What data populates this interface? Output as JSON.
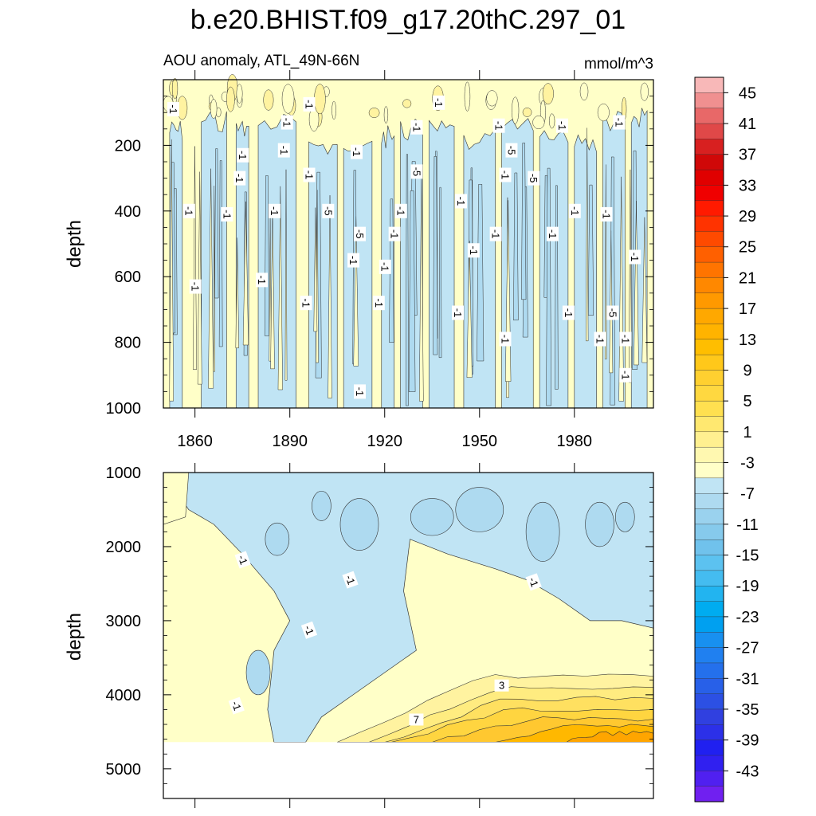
{
  "figure": {
    "title": "b.e20.BHIST.f09_g17.20thC.297_01",
    "left_subtitle": "AOU anomaly, ATL_49N-66N",
    "right_subtitle": "mmol/m^3",
    "units": "mmol/m^3"
  },
  "chart_data": [
    {
      "type": "heatmap",
      "panel": "upper",
      "variable": "AOU anomaly",
      "ylabel": "depth",
      "xlabel": "",
      "x_range": [
        1850,
        2005
      ],
      "x_ticks": [
        1860,
        1890,
        1920,
        1950,
        1980
      ],
      "x_tick_labels": [
        "1860",
        "1890",
        "1920",
        "1950",
        "1980"
      ],
      "y_range": [
        0,
        1000
      ],
      "y_inverted": true,
      "y_ticks": [
        200,
        400,
        600,
        800,
        1000
      ],
      "y_tick_labels": [
        "200",
        "400",
        "600",
        "800",
        "1000"
      ],
      "contour_labels": [
        {
          "text": "-1",
          "x": 1853,
          "y": 90
        },
        {
          "text": "-1",
          "x": 1896,
          "y": 75
        },
        {
          "text": "-1",
          "x": 1889,
          "y": 130
        },
        {
          "text": "-1",
          "x": 1930,
          "y": 145
        },
        {
          "text": "-1",
          "x": 1937,
          "y": 70
        },
        {
          "text": "-1",
          "x": 1956,
          "y": 140
        },
        {
          "text": "-1",
          "x": 1976,
          "y": 140
        },
        {
          "text": "-1",
          "x": 1994,
          "y": 130
        },
        {
          "text": "-1",
          "x": 1875,
          "y": 230
        },
        {
          "text": "-1",
          "x": 1888,
          "y": 215
        },
        {
          "text": "-1",
          "x": 1911,
          "y": 220
        },
        {
          "text": "-5",
          "x": 1960,
          "y": 215
        },
        {
          "text": "-5",
          "x": 1930,
          "y": 280
        },
        {
          "text": "-1",
          "x": 1874,
          "y": 300
        },
        {
          "text": "-1",
          "x": 1896,
          "y": 290
        },
        {
          "text": "-1",
          "x": 1958,
          "y": 290
        },
        {
          "text": "-5",
          "x": 1967,
          "y": 300
        },
        {
          "text": "-1",
          "x": 1858,
          "y": 400
        },
        {
          "text": "-1",
          "x": 1870,
          "y": 410
        },
        {
          "text": "-1",
          "x": 1885,
          "y": 400
        },
        {
          "text": "-5",
          "x": 1902,
          "y": 400
        },
        {
          "text": "-1",
          "x": 1925,
          "y": 400
        },
        {
          "text": "-1",
          "x": 1944,
          "y": 370
        },
        {
          "text": "-1",
          "x": 1980,
          "y": 400
        },
        {
          "text": "-1",
          "x": 1990,
          "y": 410
        },
        {
          "text": "-5",
          "x": 1912,
          "y": 470
        },
        {
          "text": "-1",
          "x": 1923,
          "y": 470
        },
        {
          "text": "-1",
          "x": 1955,
          "y": 470
        },
        {
          "text": "-1",
          "x": 1973,
          "y": 470
        },
        {
          "text": "-1",
          "x": 1948,
          "y": 520
        },
        {
          "text": "-1",
          "x": 1910,
          "y": 550
        },
        {
          "text": "-1",
          "x": 1920,
          "y": 570
        },
        {
          "text": "-1",
          "x": 1999,
          "y": 540
        },
        {
          "text": "-1",
          "x": 1860,
          "y": 630
        },
        {
          "text": "-1",
          "x": 1881,
          "y": 610
        },
        {
          "text": "-1",
          "x": 1895,
          "y": 680
        },
        {
          "text": "-1",
          "x": 1918,
          "y": 680
        },
        {
          "text": "-1",
          "x": 1943,
          "y": 710
        },
        {
          "text": "-1",
          "x": 1978,
          "y": 710
        },
        {
          "text": "-5",
          "x": 1992,
          "y": 710
        },
        {
          "text": "-1",
          "x": 1958,
          "y": 790
        },
        {
          "text": "-1",
          "x": 1988,
          "y": 790
        },
        {
          "text": "-1",
          "x": 1996,
          "y": 790
        },
        {
          "text": "-1",
          "x": 1996,
          "y": 900
        },
        {
          "text": "-1",
          "x": 1912,
          "y": 950
        }
      ],
      "description_levels": "mostly alternating bands between -1 and -5 (blue) and 1 to -1 (pale yellow)"
    },
    {
      "type": "heatmap",
      "panel": "lower",
      "variable": "AOU anomaly",
      "ylabel": "depth",
      "xlabel": "",
      "x_range": [
        1850,
        2005
      ],
      "y_range": [
        1000,
        5400
      ],
      "y_inverted": true,
      "y_ticks": [
        1000,
        2000,
        3000,
        4000,
        5000
      ],
      "y_tick_labels": [
        "1000",
        "2000",
        "3000",
        "4000",
        "5000"
      ],
      "data_bottom_depth": 4640,
      "contour_labels": [
        {
          "text": "-1",
          "x": 1875,
          "y": 2180
        },
        {
          "text": "-1",
          "x": 1909,
          "y": 2450
        },
        {
          "text": "-1",
          "x": 1967,
          "y": 2480
        },
        {
          "text": "-1",
          "x": 1896,
          "y": 3130
        },
        {
          "text": "-1",
          "x": 1873,
          "y": 4150
        },
        {
          "text": "3",
          "x": 1957,
          "y": 3880
        },
        {
          "text": "7",
          "x": 1930,
          "y": 4340
        }
      ],
      "description_levels": "blue negative anomalies (-1 to -7) in the 1000-3600 m layer spreading with time; positive anomalies increasing toward 13 near 4400-4600 m after 1950"
    }
  ],
  "colorbar": {
    "label_values": [
      "45",
      "41",
      "37",
      "33",
      "29",
      "25",
      "21",
      "17",
      "13",
      "9",
      "5",
      "1",
      "-3",
      "-7",
      "-11",
      "-15",
      "-19",
      "-23",
      "-27",
      "-31",
      "-35",
      "-39",
      "-43"
    ],
    "level_interval": 2,
    "min_level": -45,
    "max_level": 47,
    "colors_top_to_bottom": [
      "#f8b8b8",
      "#f09090",
      "#e86868",
      "#e04848",
      "#d82020",
      "#d00808",
      "#e00000",
      "#f00000",
      "#ff1a00",
      "#ff3300",
      "#ff4a00",
      "#ff6000",
      "#ff7400",
      "#ff8800",
      "#ff9900",
      "#ffa800",
      "#ffb300",
      "#ffbe00",
      "#ffc81a",
      "#ffd030",
      "#ffd840",
      "#ffe050",
      "#ffe870",
      "#fff090",
      "#fff8b0",
      "#ffffc8",
      "#c0e4f4",
      "#aedaf0",
      "#9ad2ee",
      "#86caec",
      "#70c2ec",
      "#5cc2f0",
      "#44bcf0",
      "#22b4f0",
      "#00acf0",
      "#00a0f0",
      "#1890f0",
      "#2080f0",
      "#2470ec",
      "#2860e8",
      "#2c50e4",
      "#3040e0",
      "#2c30e8",
      "#2020f0",
      "#3020f0",
      "#5020f0",
      "#7020f0"
    ]
  },
  "colors": {
    "positive_pale": "#ffffc8",
    "negative_pale": "#c0e4f4",
    "negative_mid": "#aedaf0",
    "positive_mid": "#ffe050",
    "positive_strong": "#ffb300",
    "positive_deep": "#ff9900"
  }
}
